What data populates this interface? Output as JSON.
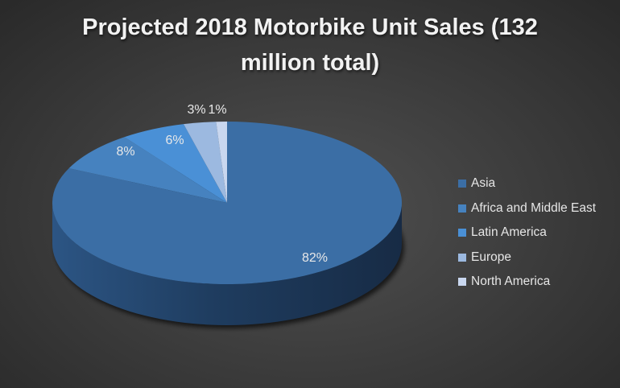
{
  "chart_data": {
    "type": "pie",
    "title": "Projected 2018 Motorbike Unit Sales (132 million total)",
    "title_lines": [
      "Projected 2018 Motorbike Unit Sales (132",
      "million total)"
    ],
    "categories": [
      "Asia",
      "Africa and Middle East",
      "Latin America",
      "Europe",
      "North America"
    ],
    "values": [
      82,
      8,
      6,
      3,
      1
    ],
    "labels": [
      "82%",
      "8%",
      "6%",
      "3%",
      "1%"
    ],
    "colors": [
      "#3b6ea5",
      "#4682bf",
      "#4a90d6",
      "#9cb9e0",
      "#c9d7ef"
    ],
    "unit": "%",
    "style": "3d-pie",
    "legend_position": "right"
  }
}
